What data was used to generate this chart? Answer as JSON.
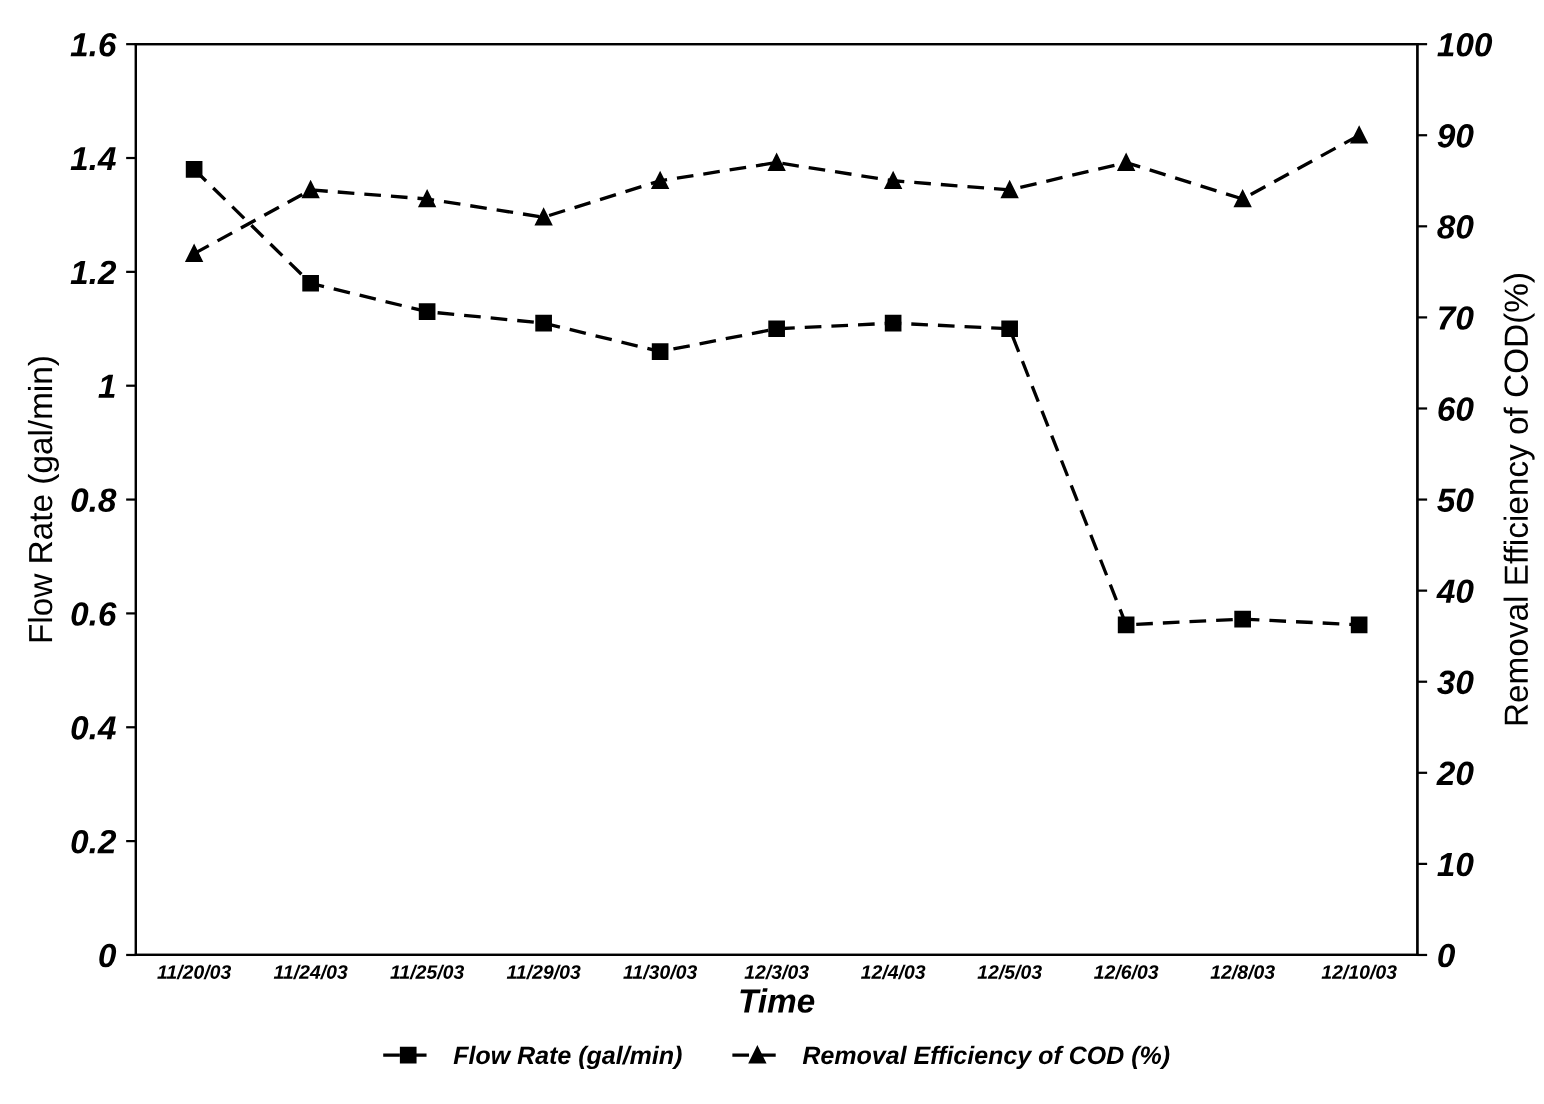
{
  "chart_data": {
    "type": "line",
    "xlabel": "Time",
    "ylabel": "Flow Rate (gal/min)",
    "y2label": "Removal Efficiency of COD(%)",
    "categories": [
      "11/20/03",
      "11/24/03",
      "11/25/03",
      "11/29/03",
      "11/30/03",
      "12/3/03",
      "12/4/03",
      "12/5/03",
      "12/6/03",
      "12/8/03",
      "12/10/03"
    ],
    "series": [
      {
        "name": "Flow Rate (gal/min)",
        "color": "#000000",
        "marker": "square",
        "values": [
          1.38,
          1.18,
          1.13,
          1.11,
          1.06,
          1.1,
          1.11,
          1.1,
          0.58,
          0.59,
          0.58
        ]
      },
      {
        "name": "Removal Efficiency of COD (%)",
        "color": "#000000",
        "marker": "triangle",
        "axis": "y2",
        "values": [
          77,
          84,
          83,
          81,
          85,
          87,
          85,
          84,
          87,
          83,
          90
        ]
      }
    ],
    "ylim": [
      0,
      1.6
    ],
    "yticks": [
      0,
      0.2,
      0.4,
      0.6,
      0.8,
      1,
      1.2,
      1.4,
      1.6
    ],
    "y2lim": [
      0,
      100
    ],
    "y2ticks": [
      0,
      10,
      20,
      30,
      40,
      50,
      60,
      70,
      80,
      90,
      100
    ],
    "line_style": "dashed",
    "legend": "bottom",
    "grid": false
  }
}
